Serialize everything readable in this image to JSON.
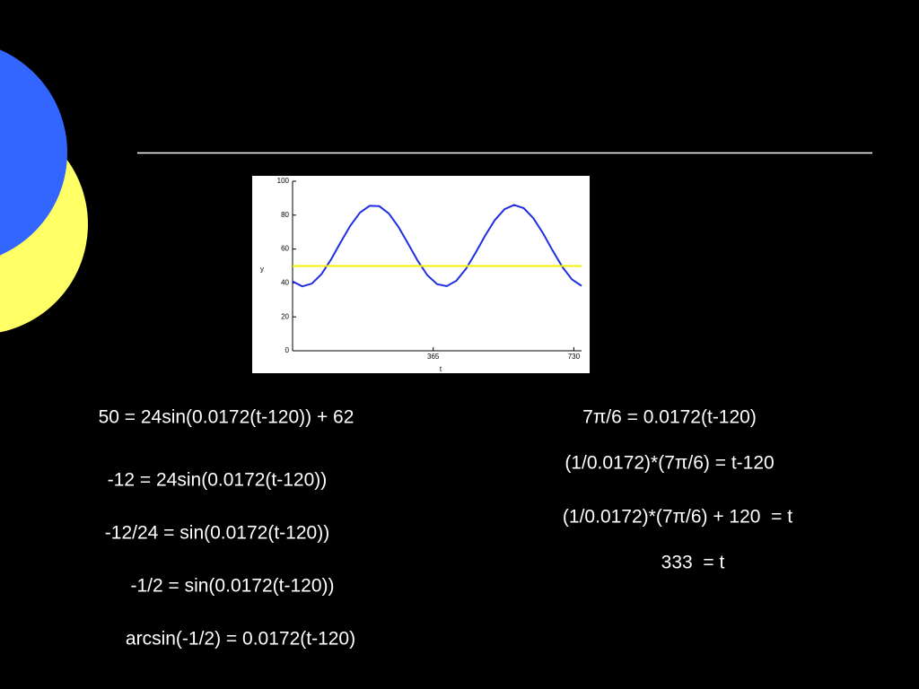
{
  "chart_data": {
    "type": "line",
    "x_label": "t",
    "y_label": "y",
    "x": [
      0,
      25,
      50,
      75,
      100,
      125,
      150,
      175,
      200,
      225,
      250,
      275,
      300,
      325,
      350,
      375,
      400,
      425,
      450,
      475,
      500,
      525,
      550,
      575,
      600,
      625,
      650,
      675,
      700,
      725,
      750
    ],
    "series": [
      {
        "color": "#1f2ee0",
        "values": [
          40.9,
          38.0,
          39.6,
          45.2,
          53.9,
          64.1,
          73.8,
          81.5,
          85.5,
          85.3,
          80.9,
          73.0,
          63.1,
          53.0,
          44.5,
          39.3,
          38.1,
          41.3,
          48.3,
          57.8,
          68.0,
          77.1,
          83.5,
          86.0,
          84.1,
          78.2,
          69.3,
          59.1,
          49.5,
          42.1,
          38.3
        ]
      },
      {
        "color": "#f2f200",
        "values": [
          50,
          50,
          50,
          50,
          50,
          50,
          50,
          50,
          50,
          50,
          50,
          50,
          50,
          50,
          50,
          50,
          50,
          50,
          50,
          50,
          50,
          50,
          50,
          50,
          50,
          50,
          50,
          50,
          50,
          50,
          50
        ]
      }
    ],
    "xlim": [
      0,
      750
    ],
    "ylim": [
      0,
      100
    ],
    "xticks": [
      365,
      730
    ],
    "yticks": [
      0,
      20,
      40,
      60,
      80,
      100
    ],
    "grid": false
  },
  "equations": {
    "left": [
      "50 = 24sin(0.0172(t-120)) + 62",
      "-12 = 24sin(0.0172(t-120))",
      "-12/24 = sin(0.0172(t-120))",
      "-1/2 = sin(0.0172(t-120))",
      "arcsin(-1/2) = 0.0172(t-120)"
    ],
    "right": [
      "7π/6 = 0.0172(t-120)",
      "(1/0.0172)*(7π/6) = t-120",
      "(1/0.0172)*(7π/6) + 120  = t",
      "333  = t"
    ]
  }
}
